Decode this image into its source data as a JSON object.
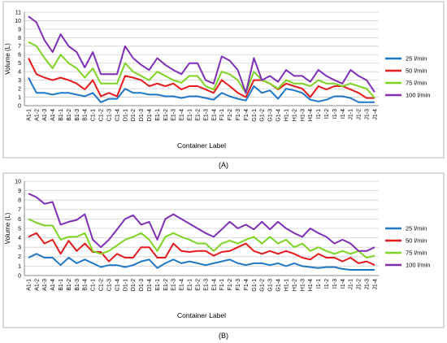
{
  "chart_data": [
    {
      "type": "line",
      "panel_label": "(A)",
      "xlabel": "Container Label",
      "ylabel": "Volume (L)",
      "ylim": [
        0,
        11
      ],
      "yticks": [
        0,
        1,
        2,
        3,
        4,
        5,
        6,
        7,
        8,
        9,
        10,
        11
      ],
      "grid": true,
      "legend_position": "right",
      "categories": [
        "A1-1",
        "A1-2",
        "A1-3",
        "A1-4",
        "B1-1",
        "B1-2",
        "B1-3",
        "B1-4",
        "C1-1",
        "C1-2",
        "C1-3",
        "C1-4",
        "D1-1",
        "D1-2",
        "D1-3",
        "D1-4",
        "E1-1",
        "E1-2",
        "E1-3",
        "E1-4",
        "E1-1",
        "E1-2",
        "E1-3",
        "E1-4",
        "F1-1",
        "F1-2",
        "F1-3",
        "F1-4",
        "G1-1",
        "G1-2",
        "G1-3",
        "G1-4",
        "H1-1",
        "H1-2",
        "H1-3",
        "H1-4",
        "I1-1",
        "I1-2",
        "I1-3",
        "I1-4",
        "J1-1",
        "J1-2",
        "J1-3",
        "J1-4"
      ],
      "series": [
        {
          "name": "25 l/min",
          "color": "#1f77c8",
          "values": [
            3.3,
            1.5,
            1.5,
            1.3,
            1.5,
            1.5,
            1.3,
            1.1,
            1.5,
            0.4,
            0.8,
            0.8,
            2.0,
            1.5,
            1.5,
            1.3,
            1.3,
            1.1,
            1.1,
            0.9,
            1.1,
            1.1,
            0.9,
            0.7,
            1.5,
            1.1,
            0.8,
            0.6,
            2.3,
            1.5,
            1.8,
            0.8,
            2.0,
            1.8,
            1.5,
            0.7,
            0.5,
            0.7,
            1.1,
            1.1,
            0.9,
            0.4,
            0.4,
            0.4
          ]
        },
        {
          "name": "50 l/min",
          "color": "#e41a1c",
          "values": [
            5.6,
            3.7,
            3.3,
            3.0,
            3.3,
            3.0,
            2.6,
            1.9,
            3.0,
            1.1,
            1.5,
            1.1,
            3.5,
            3.3,
            3.0,
            2.3,
            2.6,
            2.3,
            2.6,
            1.9,
            2.3,
            2.3,
            1.9,
            1.5,
            3.0,
            2.3,
            1.5,
            1.0,
            3.0,
            3.0,
            2.6,
            1.9,
            2.6,
            2.3,
            2.0,
            1.0,
            2.3,
            1.9,
            2.3,
            2.3,
            1.9,
            1.5,
            0.9,
            0.9
          ]
        },
        {
          "name": "75 l/min",
          "color": "#7dd322",
          "values": [
            7.5,
            7.0,
            5.6,
            4.4,
            6.0,
            5.0,
            4.4,
            3.3,
            4.4,
            2.6,
            2.6,
            2.6,
            5.0,
            4.0,
            3.5,
            3.0,
            4.0,
            3.5,
            3.0,
            2.7,
            3.5,
            3.5,
            2.3,
            1.9,
            4.0,
            3.7,
            3.0,
            1.5,
            4.0,
            3.0,
            2.6,
            2.0,
            3.0,
            2.6,
            2.6,
            2.3,
            3.0,
            2.6,
            2.6,
            2.3,
            2.6,
            2.3,
            2.0,
            0.9
          ]
        },
        {
          "name": "100 l/min",
          "color": "#7f2fb5",
          "values": [
            10.5,
            9.8,
            7.7,
            6.3,
            8.4,
            7.0,
            6.3,
            4.5,
            6.3,
            3.7,
            3.7,
            3.7,
            7.0,
            5.6,
            4.8,
            4.2,
            5.6,
            4.8,
            4.2,
            3.7,
            5.0,
            5.0,
            3.0,
            2.6,
            5.8,
            5.3,
            4.2,
            1.5,
            5.6,
            3.0,
            3.5,
            2.8,
            4.2,
            3.5,
            3.5,
            2.8,
            4.2,
            3.5,
            3.0,
            2.6,
            4.2,
            3.5,
            3.0,
            1.6
          ]
        }
      ]
    },
    {
      "type": "line",
      "panel_label": "(B)",
      "xlabel": "Container Label",
      "ylabel": "Volume (L)",
      "ylim": [
        0,
        10
      ],
      "yticks": [
        0,
        1,
        2,
        3,
        4,
        5,
        6,
        7,
        8,
        9,
        10
      ],
      "grid": true,
      "legend_position": "right",
      "categories": [
        "A1-1",
        "A1-2",
        "A1-3",
        "A1-4",
        "B1-1",
        "B1-2",
        "B1-3",
        "B1-4",
        "C1-1",
        "C1-2",
        "C1-3",
        "C1-4",
        "D1-1",
        "D1-2",
        "D1-3",
        "D1-4",
        "E1-1",
        "E1-2",
        "E1-3",
        "E1-4",
        "E1-1",
        "E1-2",
        "E1-3",
        "E1-4",
        "F1-1",
        "F1-2",
        "F1-3",
        "F1-4",
        "G1-1",
        "G1-2",
        "G1-3",
        "G1-4",
        "H1-1",
        "H1-2",
        "H1-3",
        "H1-4",
        "I1-1",
        "I1-2",
        "I1-3",
        "I1-4",
        "J1-1",
        "J1-2",
        "J1-3",
        "J1-4"
      ],
      "series": [
        {
          "name": "25 l/min",
          "color": "#1f77c8",
          "values": [
            1.9,
            2.3,
            1.9,
            1.9,
            1.1,
            1.9,
            1.3,
            1.7,
            1.3,
            0.9,
            1.1,
            1.1,
            0.9,
            1.1,
            1.5,
            1.7,
            0.8,
            1.3,
            1.7,
            1.3,
            1.5,
            1.3,
            1.1,
            1.3,
            1.5,
            1.7,
            1.3,
            1.1,
            1.3,
            1.3,
            1.1,
            1.3,
            1.0,
            1.3,
            1.0,
            0.9,
            0.8,
            0.9,
            0.9,
            0.7,
            0.6,
            0.6,
            0.6,
            0.6
          ]
        },
        {
          "name": "50 l/min",
          "color": "#e41a1c",
          "values": [
            4.1,
            4.5,
            3.4,
            3.8,
            2.3,
            3.7,
            2.6,
            3.4,
            2.5,
            2.5,
            1.5,
            2.3,
            1.9,
            1.9,
            3.0,
            3.0,
            1.9,
            1.9,
            3.4,
            2.6,
            2.5,
            2.6,
            2.6,
            2.1,
            2.5,
            2.6,
            3.0,
            3.4,
            2.6,
            2.3,
            2.6,
            2.3,
            2.6,
            2.3,
            1.9,
            1.7,
            2.3,
            1.9,
            1.9,
            1.5,
            1.9,
            1.3,
            1.5,
            1.1
          ]
        },
        {
          "name": "75 l/min",
          "color": "#7dd322",
          "values": [
            6.0,
            5.6,
            5.3,
            5.3,
            3.8,
            4.1,
            4.1,
            4.5,
            2.6,
            2.3,
            2.6,
            3.2,
            3.8,
            4.1,
            4.5,
            3.8,
            2.6,
            4.1,
            4.5,
            4.1,
            3.8,
            3.4,
            3.4,
            2.6,
            3.4,
            3.7,
            3.4,
            3.8,
            4.1,
            3.4,
            4.1,
            3.4,
            3.8,
            3.0,
            3.4,
            2.6,
            3.0,
            2.6,
            2.3,
            2.6,
            2.3,
            2.6,
            1.9,
            2.1
          ]
        },
        {
          "name": "100 l/min",
          "color": "#7f2fb5",
          "values": [
            8.7,
            8.3,
            7.6,
            7.8,
            5.4,
            5.7,
            5.9,
            6.5,
            3.8,
            3.0,
            3.8,
            4.9,
            6.0,
            6.4,
            5.4,
            5.7,
            3.8,
            6.0,
            6.5,
            6.0,
            5.5,
            5.0,
            4.5,
            4.1,
            4.9,
            5.7,
            5.0,
            5.4,
            4.9,
            5.7,
            4.9,
            5.7,
            5.0,
            4.5,
            4.1,
            5.0,
            4.5,
            4.1,
            3.4,
            3.8,
            3.4,
            2.6,
            2.6,
            3.0
          ]
        }
      ]
    }
  ]
}
